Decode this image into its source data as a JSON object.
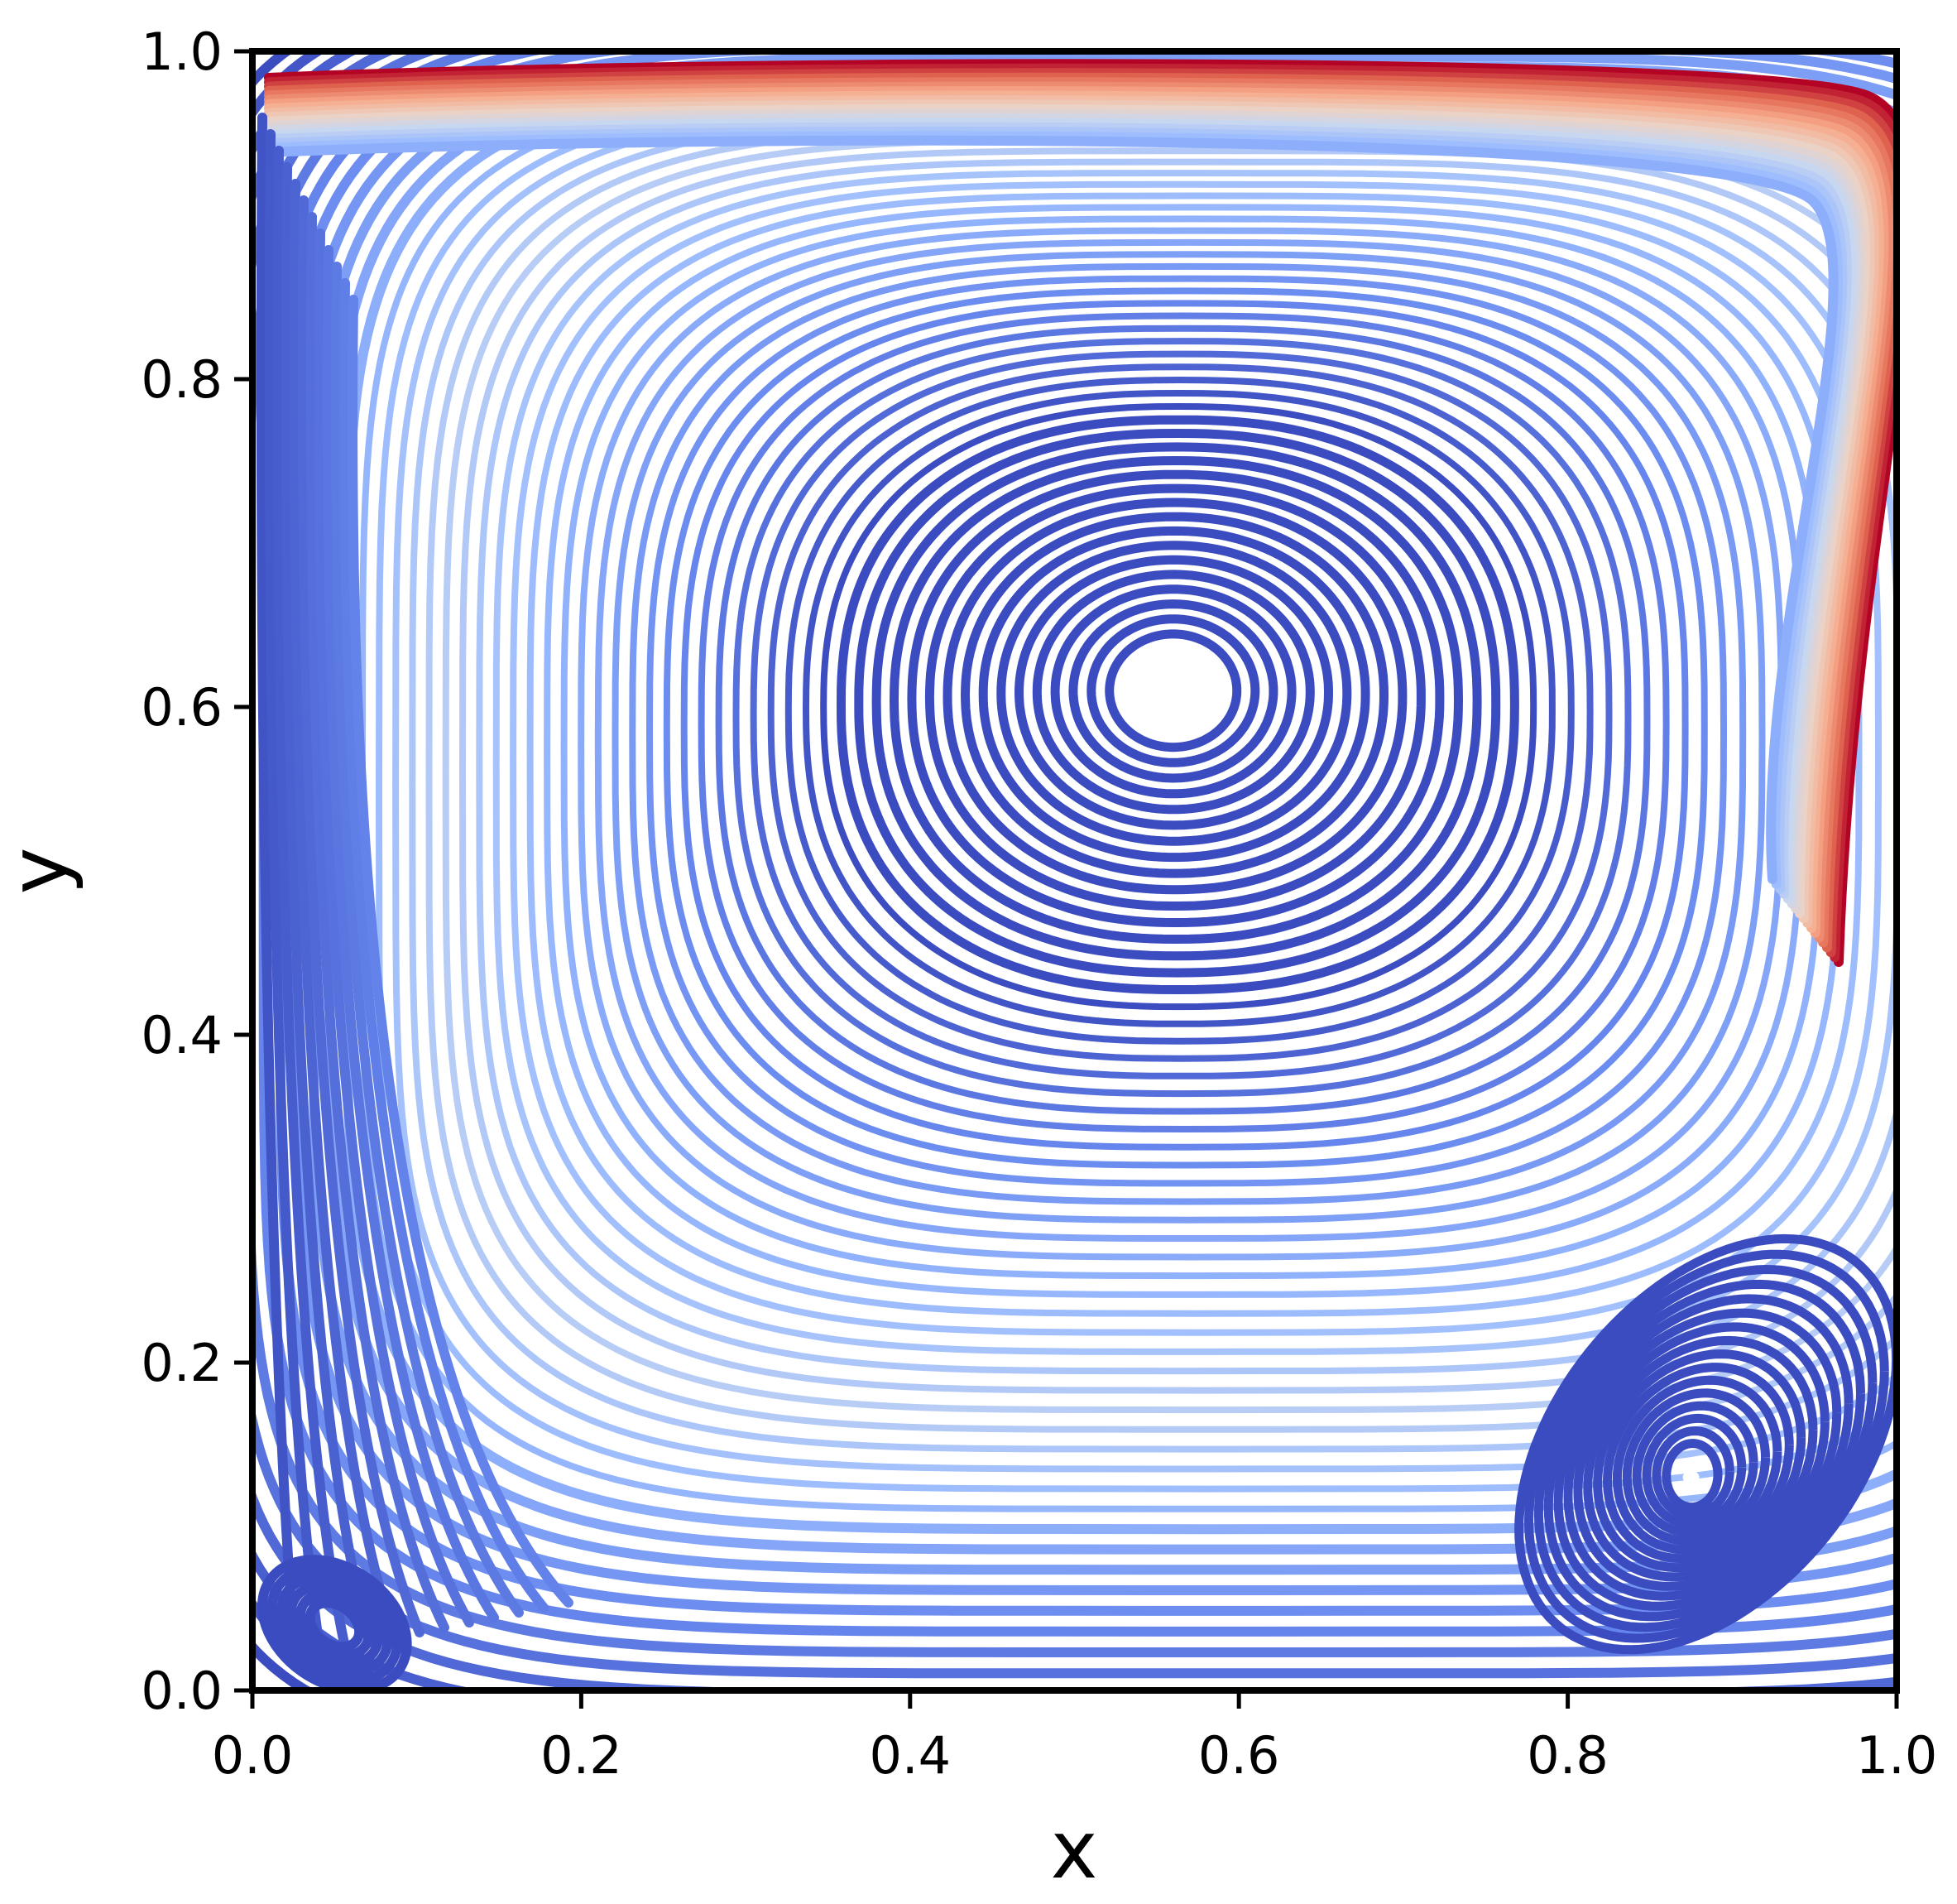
{
  "chart_data": {
    "type": "streamline",
    "title": "",
    "xlabel": "x",
    "ylabel": "y",
    "xlim": [
      0.0,
      1.0
    ],
    "ylim": [
      0.0,
      1.0
    ],
    "xticks": [
      0.0,
      0.2,
      0.4,
      0.6,
      0.8,
      1.0
    ],
    "yticks": [
      0.0,
      0.2,
      0.4,
      0.6,
      0.8,
      1.0
    ],
    "xtick_labels": [
      "0.0",
      "0.2",
      "0.4",
      "0.6",
      "0.8",
      "1.0"
    ],
    "ytick_labels": [
      "0.0",
      "0.2",
      "0.4",
      "0.6",
      "0.8",
      "1.0"
    ],
    "grid": false,
    "legend": "none",
    "colormap": "coolwarm",
    "colormap_stops": [
      "#3b4cc0",
      "#6788ee",
      "#9abbff",
      "#c9d7f0",
      "#edd1c2",
      "#f7a889",
      "#e26952",
      "#b40426"
    ],
    "vortices": [
      {
        "name": "primary",
        "center": [
          0.56,
          0.61
        ]
      },
      {
        "name": "bottom-right",
        "center": [
          0.875,
          0.13
        ]
      },
      {
        "name": "bottom-left",
        "center": [
          0.05,
          0.04
        ]
      }
    ],
    "color_encoding": "velocity magnitude (high near the moving top lid)"
  }
}
